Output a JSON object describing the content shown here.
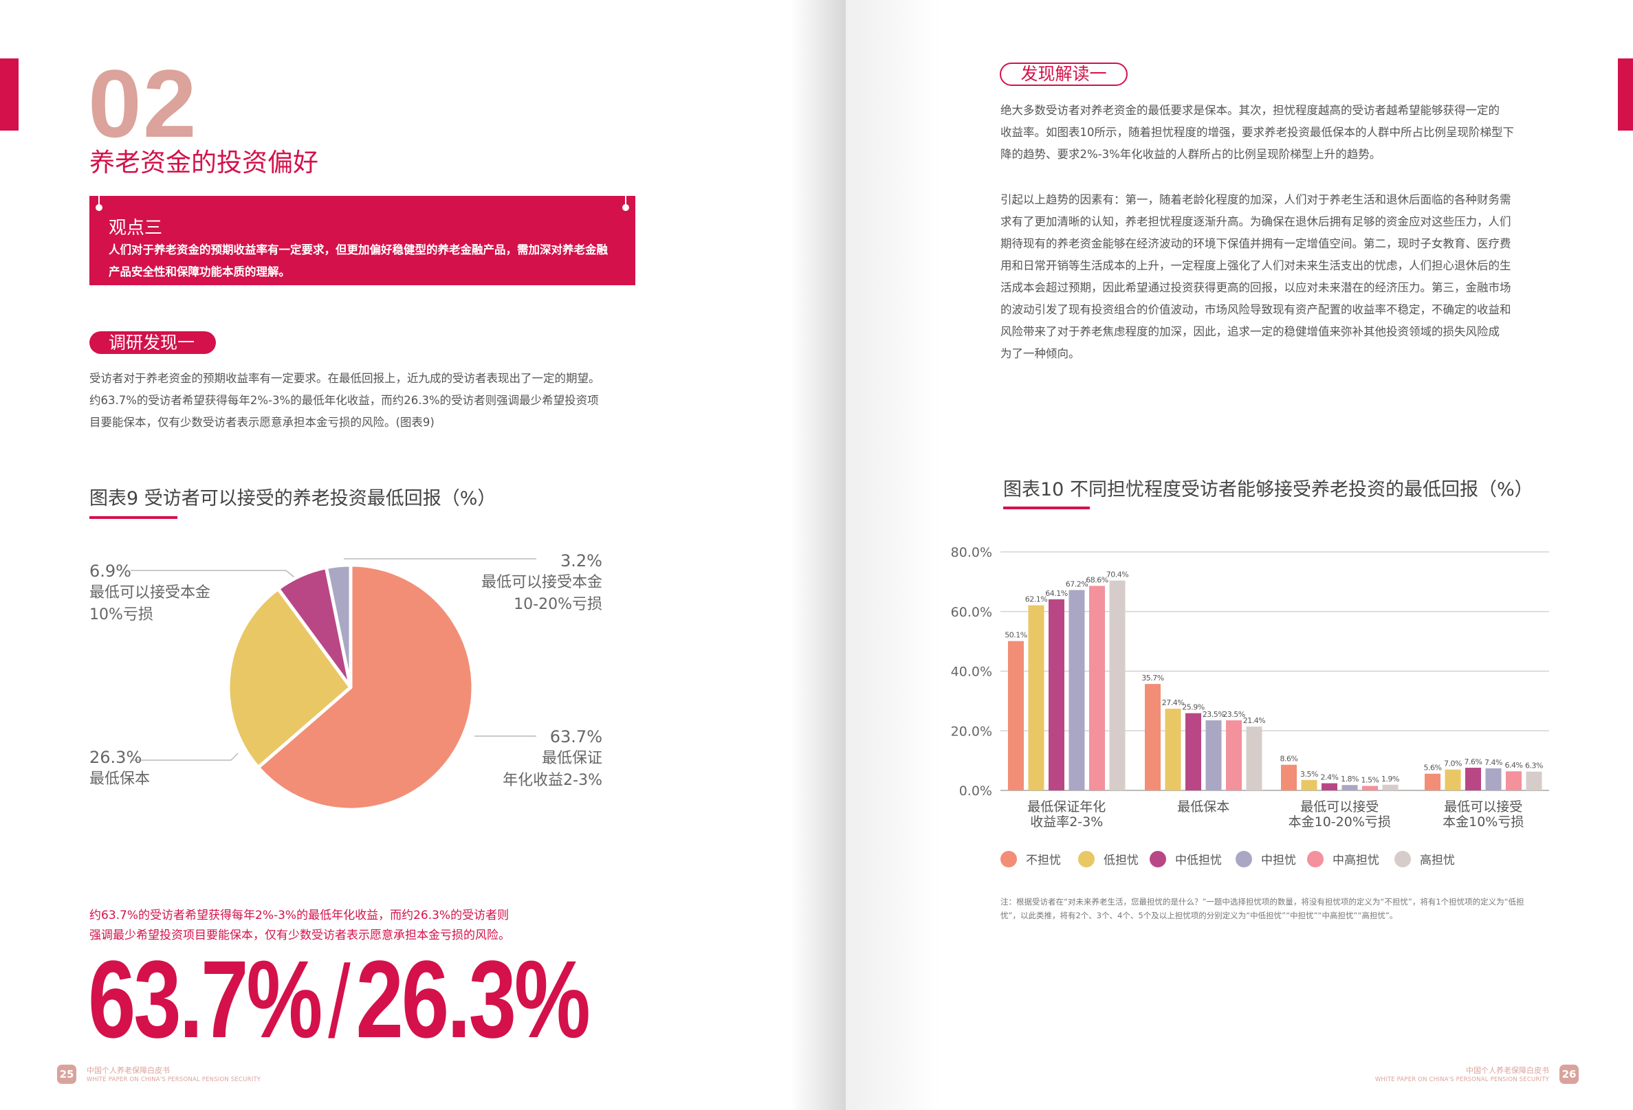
{
  "colors": {
    "accent": "#d4114a",
    "number_tan": "#dba39b"
  },
  "left_page": {
    "section_number": "02",
    "section_title": "养老资金的投资偏好",
    "viewpoint": {
      "title": "观点三",
      "body": "人们对于养老资金的预期收益率有一定要求，但更加偏好稳健型的养老金融产品，需加深对养老金融产品安全性和保障功能本质的理解。"
    },
    "finding_label": "调研发现一",
    "finding_lines": [
      "受访者对于养老资金的预期收益率有一定要求。在最低回报上，近九成的受访者表现出了一定的期望。",
      "约63.7%的受访者希望获得每年2%-3%的最低年化收益，而约26.3%的受访者则强调最少希望投资项",
      "目要能保本，仅有少数受访者表示愿意承担本金亏损的风险。(图表9)"
    ],
    "highlight_lines": [
      "约63.7%的受访者希望获得每年2%-3%的最低年化收益，而约26.3%的受访者则",
      "强调最少希望投资项目要能保本，仅有少数受访者表示愿意承担本金亏损的风险。"
    ],
    "big_stat_1": "63.7%",
    "big_stat_sep": "/",
    "big_stat_2": "26.3%",
    "footer": {
      "page": "25",
      "title_cn": "中国个人养老保障白皮书",
      "title_en": "WHITE PAPER ON CHINA'S PERSONAL PENSION SECURITY"
    }
  },
  "right_page": {
    "finding_label": "发现解读一",
    "para1_lines": [
      "绝大多数受访者对养老资金的最低要求是保本。其次，担忧程度越高的受访者越希望能够获得一定的",
      "收益率。如图表10所示，随着担忧程度的增强，要求养老投资最低保本的人群中所占比例呈现阶梯型下",
      "降的趋势、要求2%-3%年化收益的人群所占的比例呈现阶梯型上升的趋势。"
    ],
    "para2_lines": [
      "引起以上趋势的因素有：第一，随着老龄化程度的加深，人们对于养老生活和退休后面临的各种财务需",
      "求有了更加清晰的认知，养老担忧程度逐渐升高。为确保在退休后拥有足够的资金应对这些压力，人们",
      "期待现有的养老资金能够在经济波动的环境下保值并拥有一定增值空间。第二，现时子女教育、医疗费",
      "用和日常开销等生活成本的上升，一定程度上强化了人们对未来生活支出的忧虑，人们担心退休后的生",
      "活成本会超过预期，因此希望通过投资获得更高的回报，以应对未来潜在的经济压力。第三，金融市场",
      "的波动引发了现有投资组合的价值波动，市场风险导致现有资产配置的收益率不稳定，不确定的收益和",
      "风险带来了对于养老焦虑程度的加深，因此，追求一定的稳健增值来弥补其他投资领域的损失风险成",
      "为了一种倾向。"
    ],
    "note_lines": [
      "注：根据受访者在“对未来养老生活，您最担忧的是什么？”一题中选择担忧项的数量，将没有担忧项的定义为“不担忧”，将有1个担忧项的定义为“低担",
      "忧”，以此类推，将有2个、3个、4个、5个及以上担忧项的分别定义为“中低担忧”“中担忧”“中高担忧”“高担忧”。"
    ],
    "footer": {
      "page": "26",
      "title_cn": "中国个人养老保障白皮书",
      "title_en": "WHITE PAPER ON CHINA'S PERSONAL PENSION SECURITY"
    }
  },
  "chart_data": [
    {
      "type": "pie",
      "title": "图表9 受访者可以接受的养老投资最低回报（%）",
      "slices": [
        {
          "label_lines": [
            "最低保证",
            "年化收益2-3%"
          ],
          "value": 63.7,
          "value_label": "63.7%",
          "color": "#f28e76"
        },
        {
          "label_lines": [
            "最低保本"
          ],
          "value": 26.3,
          "value_label": "26.3%",
          "color": "#e9c765"
        },
        {
          "label_lines": [
            "最低可以接受本金",
            "10%亏损"
          ],
          "value": 6.9,
          "value_label": "6.9%",
          "color": "#b94785"
        },
        {
          "label_lines": [
            "最低可以接受本金",
            "10-20%亏损"
          ],
          "value": 3.2,
          "value_label": "3.2%",
          "color": "#a9a7c3"
        }
      ]
    },
    {
      "type": "bar",
      "title": "图表10 不同担忧程度受访者能够接受养老投资的最低回报（%）",
      "categories": [
        [
          "最低保证年化",
          "收益率2-3%"
        ],
        [
          "最低保本"
        ],
        [
          "最低可以接受",
          "本金10-20%亏损"
        ],
        [
          "最低可以接受",
          "本金10%亏损"
        ]
      ],
      "ylim": [
        0,
        80
      ],
      "yticks": [
        "0.0%",
        "20.0%",
        "40.0%",
        "60.0%",
        "80.0%"
      ],
      "ytick_values": [
        0,
        20,
        40,
        60,
        80
      ],
      "grid": true,
      "legend_position": "bottom",
      "series": [
        {
          "name": "不担忧",
          "color": "#f28e76",
          "values": [
            50.1,
            35.7,
            8.6,
            5.6
          ]
        },
        {
          "name": "低担忧",
          "color": "#e9c765",
          "values": [
            62.1,
            27.4,
            3.5,
            7.0
          ]
        },
        {
          "name": "中低担忧",
          "color": "#b94785",
          "values": [
            64.1,
            25.9,
            2.4,
            7.6
          ]
        },
        {
          "name": "中担忧",
          "color": "#a9a7c3",
          "values": [
            67.2,
            23.5,
            1.8,
            7.4
          ]
        },
        {
          "name": "中高担忧",
          "color": "#f3919c",
          "values": [
            68.6,
            23.5,
            1.5,
            6.4
          ]
        },
        {
          "name": "高担忧",
          "color": "#d6cdca",
          "values": [
            70.4,
            21.4,
            1.9,
            6.3
          ]
        }
      ]
    }
  ]
}
